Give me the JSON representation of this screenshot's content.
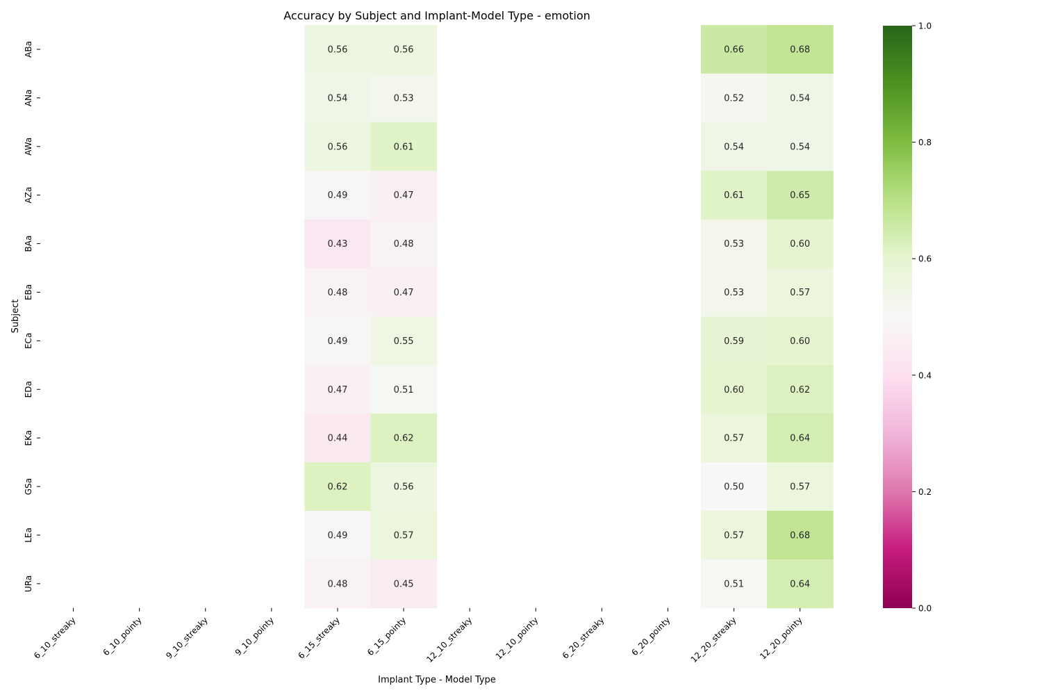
{
  "chart_data": {
    "type": "heatmap",
    "title": "Accuracy by Subject and Implant-Model Type - emotion",
    "xlabel": "Implant Type - Model Type",
    "ylabel": "Subject",
    "x_categories": [
      "6_10_streaky",
      "6_10_pointy",
      "9_10_streaky",
      "9_10_pointy",
      "6_15_streaky",
      "6_15_pointy",
      "12_10_streaky",
      "12_10_pointy",
      "6_20_streaky",
      "6_20_pointy",
      "12_20_streaky",
      "12_20_pointy"
    ],
    "y_categories": [
      "ABa",
      "ANa",
      "AWa",
      "AZa",
      "BAa",
      "EBa",
      "ECa",
      "EDa",
      "EKa",
      "GSa",
      "LEa",
      "URa"
    ],
    "values": [
      [
        null,
        null,
        null,
        null,
        0.56,
        0.56,
        null,
        null,
        null,
        null,
        0.66,
        0.68
      ],
      [
        null,
        null,
        null,
        null,
        0.54,
        0.53,
        null,
        null,
        null,
        null,
        0.52,
        0.54
      ],
      [
        null,
        null,
        null,
        null,
        0.56,
        0.61,
        null,
        null,
        null,
        null,
        0.54,
        0.54
      ],
      [
        null,
        null,
        null,
        null,
        0.49,
        0.47,
        null,
        null,
        null,
        null,
        0.61,
        0.65
      ],
      [
        null,
        null,
        null,
        null,
        0.43,
        0.48,
        null,
        null,
        null,
        null,
        0.53,
        0.6
      ],
      [
        null,
        null,
        null,
        null,
        0.48,
        0.47,
        null,
        null,
        null,
        null,
        0.53,
        0.57
      ],
      [
        null,
        null,
        null,
        null,
        0.49,
        0.55,
        null,
        null,
        null,
        null,
        0.59,
        0.6
      ],
      [
        null,
        null,
        null,
        null,
        0.47,
        0.51,
        null,
        null,
        null,
        null,
        0.6,
        0.62
      ],
      [
        null,
        null,
        null,
        null,
        0.44,
        0.62,
        null,
        null,
        null,
        null,
        0.57,
        0.64
      ],
      [
        null,
        null,
        null,
        null,
        0.62,
        0.56,
        null,
        null,
        null,
        null,
        0.5,
        0.57
      ],
      [
        null,
        null,
        null,
        null,
        0.49,
        0.57,
        null,
        null,
        null,
        null,
        0.57,
        0.68
      ],
      [
        null,
        null,
        null,
        null,
        0.48,
        0.45,
        null,
        null,
        null,
        null,
        0.51,
        0.64
      ]
    ],
    "value_format": "0.00",
    "colormap": "PiYG",
    "vmin": 0.0,
    "vmax": 1.0,
    "colorbar_ticks": [
      "0.0",
      "0.2",
      "0.4",
      "0.6",
      "0.8",
      "1.0"
    ],
    "colorbar_tick_values": [
      0.0,
      0.2,
      0.4,
      0.6,
      0.8,
      1.0
    ]
  }
}
